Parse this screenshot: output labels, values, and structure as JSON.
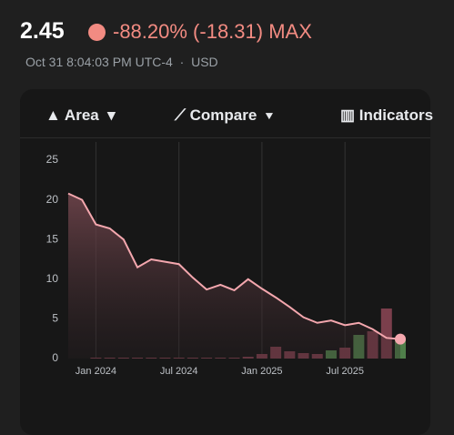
{
  "header": {
    "price": "2.45",
    "change": "-88.20% (-18.31)",
    "range": "MAX",
    "timestamp": "Oct 31 8:04:03 PM UTC-4",
    "currency": "USD"
  },
  "toolbar": {
    "items": [
      "Area",
      "Compare",
      "Indicators"
    ]
  },
  "chart_data": {
    "type": "area",
    "x": [
      -2,
      -1,
      0,
      1,
      2,
      3,
      4,
      5,
      6,
      7,
      8,
      9,
      10,
      11,
      12,
      13,
      14,
      15,
      16,
      17,
      18,
      19,
      20,
      21,
      22
    ],
    "xlim": [
      -2,
      22
    ],
    "xticks": [
      {
        "value": 0,
        "label": "Jan 2024"
      },
      {
        "value": 6,
        "label": "Jul 2024"
      },
      {
        "value": 12,
        "label": "Jan 2025"
      },
      {
        "value": 18,
        "label": "Jul 2025"
      }
    ],
    "ylim": [
      0,
      25
    ],
    "yticks": [
      0,
      5,
      10,
      15,
      20,
      25
    ],
    "y2lim": [
      0,
      218
    ],
    "grid": true,
    "series": [
      {
        "color": "#f4a7ae",
        "values": [
          20.8,
          20.0,
          16.9,
          16.4,
          15.0,
          11.5,
          12.5,
          12.2,
          11.9,
          10.2,
          8.7,
          9.3,
          8.6,
          10.0,
          8.8,
          7.7,
          6.5,
          5.2,
          4.5,
          4.8,
          4.2,
          4.5,
          3.7,
          2.6,
          2.45
        ]
      },
      {
        "type": "bar",
        "axis": "y2",
        "colors": [
          "#7b3f4c",
          "#7b3f4c",
          "#7b3f4c",
          "#7b3f4c",
          "#7b3f4c",
          "#7b3f4c",
          "#7b3f4c",
          "#7b3f4c",
          "#7b3f4c",
          "#7b3f4c",
          "#7b3f4c",
          "#7b3f4c",
          "#7b3f4c",
          "#7b3f4c",
          "#7b3f4c",
          "#7b3f4c",
          "#7b3f4c",
          "#7b3f4c",
          "#7b3f4c",
          "#4f7f4a",
          "#7b3f4c",
          "#4f7f4a",
          "#7b3f4c",
          "#7b3f4c",
          "#4f7f4a"
        ],
        "values": [
          null,
          null,
          1,
          1,
          1,
          1,
          1,
          1,
          1,
          1,
          1,
          1,
          1,
          2,
          5,
          13,
          8,
          6,
          5,
          9,
          12,
          26,
          30,
          55,
          22
        ]
      }
    ]
  }
}
